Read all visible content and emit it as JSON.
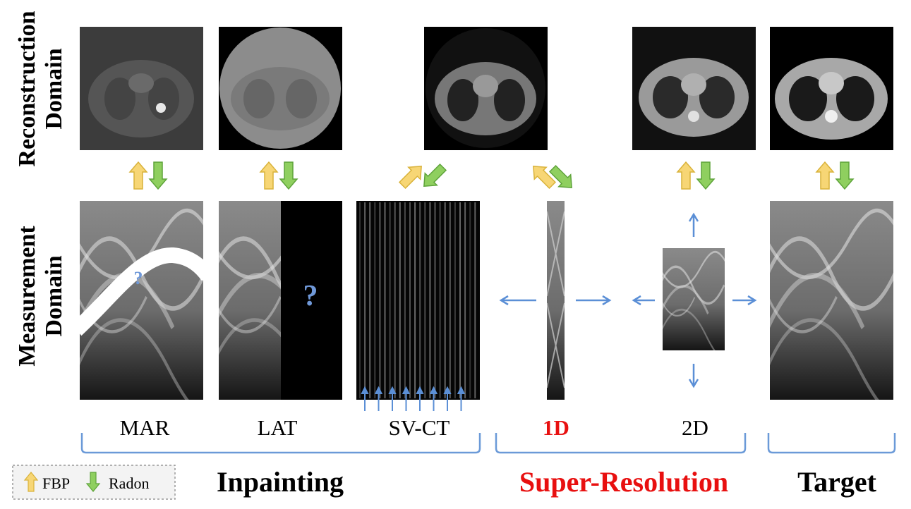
{
  "domains": {
    "reconstruction": [
      "Reconstruction",
      "Domain"
    ],
    "measurement": [
      "Measurement",
      "Domain"
    ]
  },
  "columns": {
    "mar": "MAR",
    "lat": "LAT",
    "svct": "SV-CT",
    "sr1d": "1D",
    "sr2d": "2D"
  },
  "question_mark": "?",
  "groups": {
    "inpainting": "Inpainting",
    "super_resolution": "Super-Resolution",
    "target": "Target"
  },
  "legend": {
    "fbp": "FBP",
    "radon": "Radon"
  },
  "colors": {
    "fbp_arrow": "#f7d675",
    "radon_arrow": "#8fcf5f",
    "blue": "#5b8fd6",
    "red": "#e81010"
  }
}
